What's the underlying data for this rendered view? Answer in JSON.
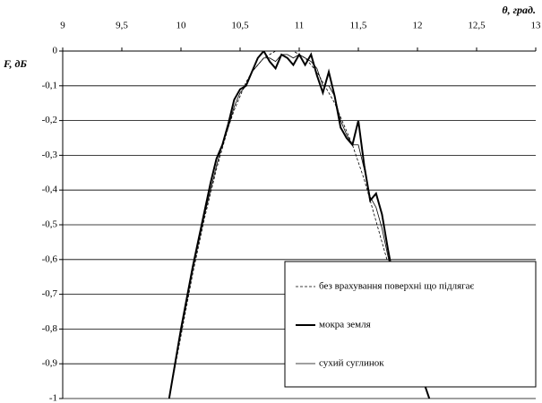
{
  "chart_data": {
    "type": "line",
    "xlabel": "θ, град.",
    "ylabel": "F, дБ",
    "x": [
      9.9,
      9.95,
      10.0,
      10.05,
      10.1,
      10.15,
      10.2,
      10.25,
      10.3,
      10.35,
      10.4,
      10.45,
      10.5,
      10.55,
      10.6,
      10.65,
      10.7,
      10.75,
      10.8,
      10.85,
      10.9,
      10.95,
      11.0,
      11.05,
      11.1,
      11.15,
      11.2,
      11.25,
      11.3,
      11.35,
      11.4,
      11.45,
      11.5,
      11.55,
      11.6,
      11.65,
      11.7,
      11.75,
      11.8,
      11.85,
      11.9,
      11.95,
      12.0,
      12.05,
      12.1
    ],
    "series": [
      {
        "name": "без врахування поверхні що підлягає",
        "color": "#000000",
        "dash": "dashed",
        "width": 0.8,
        "values": [
          -1.0,
          -0.91,
          -0.82,
          -0.73,
          -0.64,
          -0.56,
          -0.48,
          -0.41,
          -0.34,
          -0.28,
          -0.22,
          -0.17,
          -0.13,
          -0.09,
          -0.06,
          -0.04,
          -0.02,
          -0.01,
          0,
          0,
          0,
          0,
          -0.01,
          -0.02,
          -0.04,
          -0.06,
          -0.09,
          -0.12,
          -0.15,
          -0.19,
          -0.23,
          -0.27,
          -0.32,
          -0.37,
          -0.43,
          -0.49,
          -0.55,
          -0.61,
          -0.67,
          -0.73,
          -0.79,
          -0.85,
          -0.9,
          -0.95,
          -1.0
        ]
      },
      {
        "name": "мокра земля",
        "color": "#000000",
        "dash": "solid",
        "width": 2,
        "values": [
          -1.0,
          -0.9,
          -0.8,
          -0.71,
          -0.62,
          -0.54,
          -0.46,
          -0.38,
          -0.31,
          -0.27,
          -0.21,
          -0.14,
          -0.11,
          -0.1,
          -0.06,
          -0.02,
          0,
          -0.03,
          -0.05,
          -0.01,
          -0.02,
          -0.04,
          -0.01,
          -0.04,
          -0.01,
          -0.07,
          -0.12,
          -0.06,
          -0.13,
          -0.22,
          -0.25,
          -0.27,
          -0.2,
          -0.33,
          -0.43,
          -0.41,
          -0.47,
          -0.57,
          -0.66,
          -0.73,
          -0.79,
          -0.85,
          -0.9,
          -0.95,
          -1.0
        ]
      },
      {
        "name": "сухий суглинок",
        "color": "#000000",
        "dash": "solid",
        "width": 0.8,
        "values": [
          -1.0,
          -0.9,
          -0.81,
          -0.72,
          -0.63,
          -0.55,
          -0.47,
          -0.4,
          -0.33,
          -0.27,
          -0.22,
          -0.16,
          -0.12,
          -0.1,
          -0.06,
          -0.04,
          -0.02,
          -0.02,
          -0.03,
          -0.01,
          -0.01,
          -0.02,
          -0.01,
          -0.02,
          -0.03,
          -0.05,
          -0.1,
          -0.1,
          -0.13,
          -0.2,
          -0.24,
          -0.27,
          -0.27,
          -0.34,
          -0.42,
          -0.45,
          -0.51,
          -0.59,
          -0.67,
          -0.73,
          -0.79,
          -0.85,
          -0.9,
          -0.95,
          -1.0
        ]
      }
    ],
    "xlim": [
      9,
      13
    ],
    "xticks": [
      9,
      {
        "value": 9.5,
        "label": "9,5"
      },
      10,
      {
        "value": 10.5,
        "label": "10,5"
      },
      11,
      {
        "value": 11.5,
        "label": "11,5"
      },
      12,
      {
        "value": 12.5,
        "label": "12,5"
      },
      13
    ],
    "ylim": [
      -1,
      0
    ],
    "yticks": [
      0,
      {
        "value": -0.1,
        "label": "-0,1"
      },
      {
        "value": -0.2,
        "label": "-0,2"
      },
      {
        "value": -0.3,
        "label": "-0,3"
      },
      {
        "value": -0.4,
        "label": "-0,4"
      },
      {
        "value": -0.5,
        "label": "-0,5"
      },
      {
        "value": -0.6,
        "label": "-0,6"
      },
      {
        "value": -0.7,
        "label": "-0,7"
      },
      {
        "value": -0.8,
        "label": "-0,8"
      },
      {
        "value": -0.9,
        "label": "-0,9"
      },
      -1
    ],
    "grid": true,
    "legend": "lower right"
  }
}
